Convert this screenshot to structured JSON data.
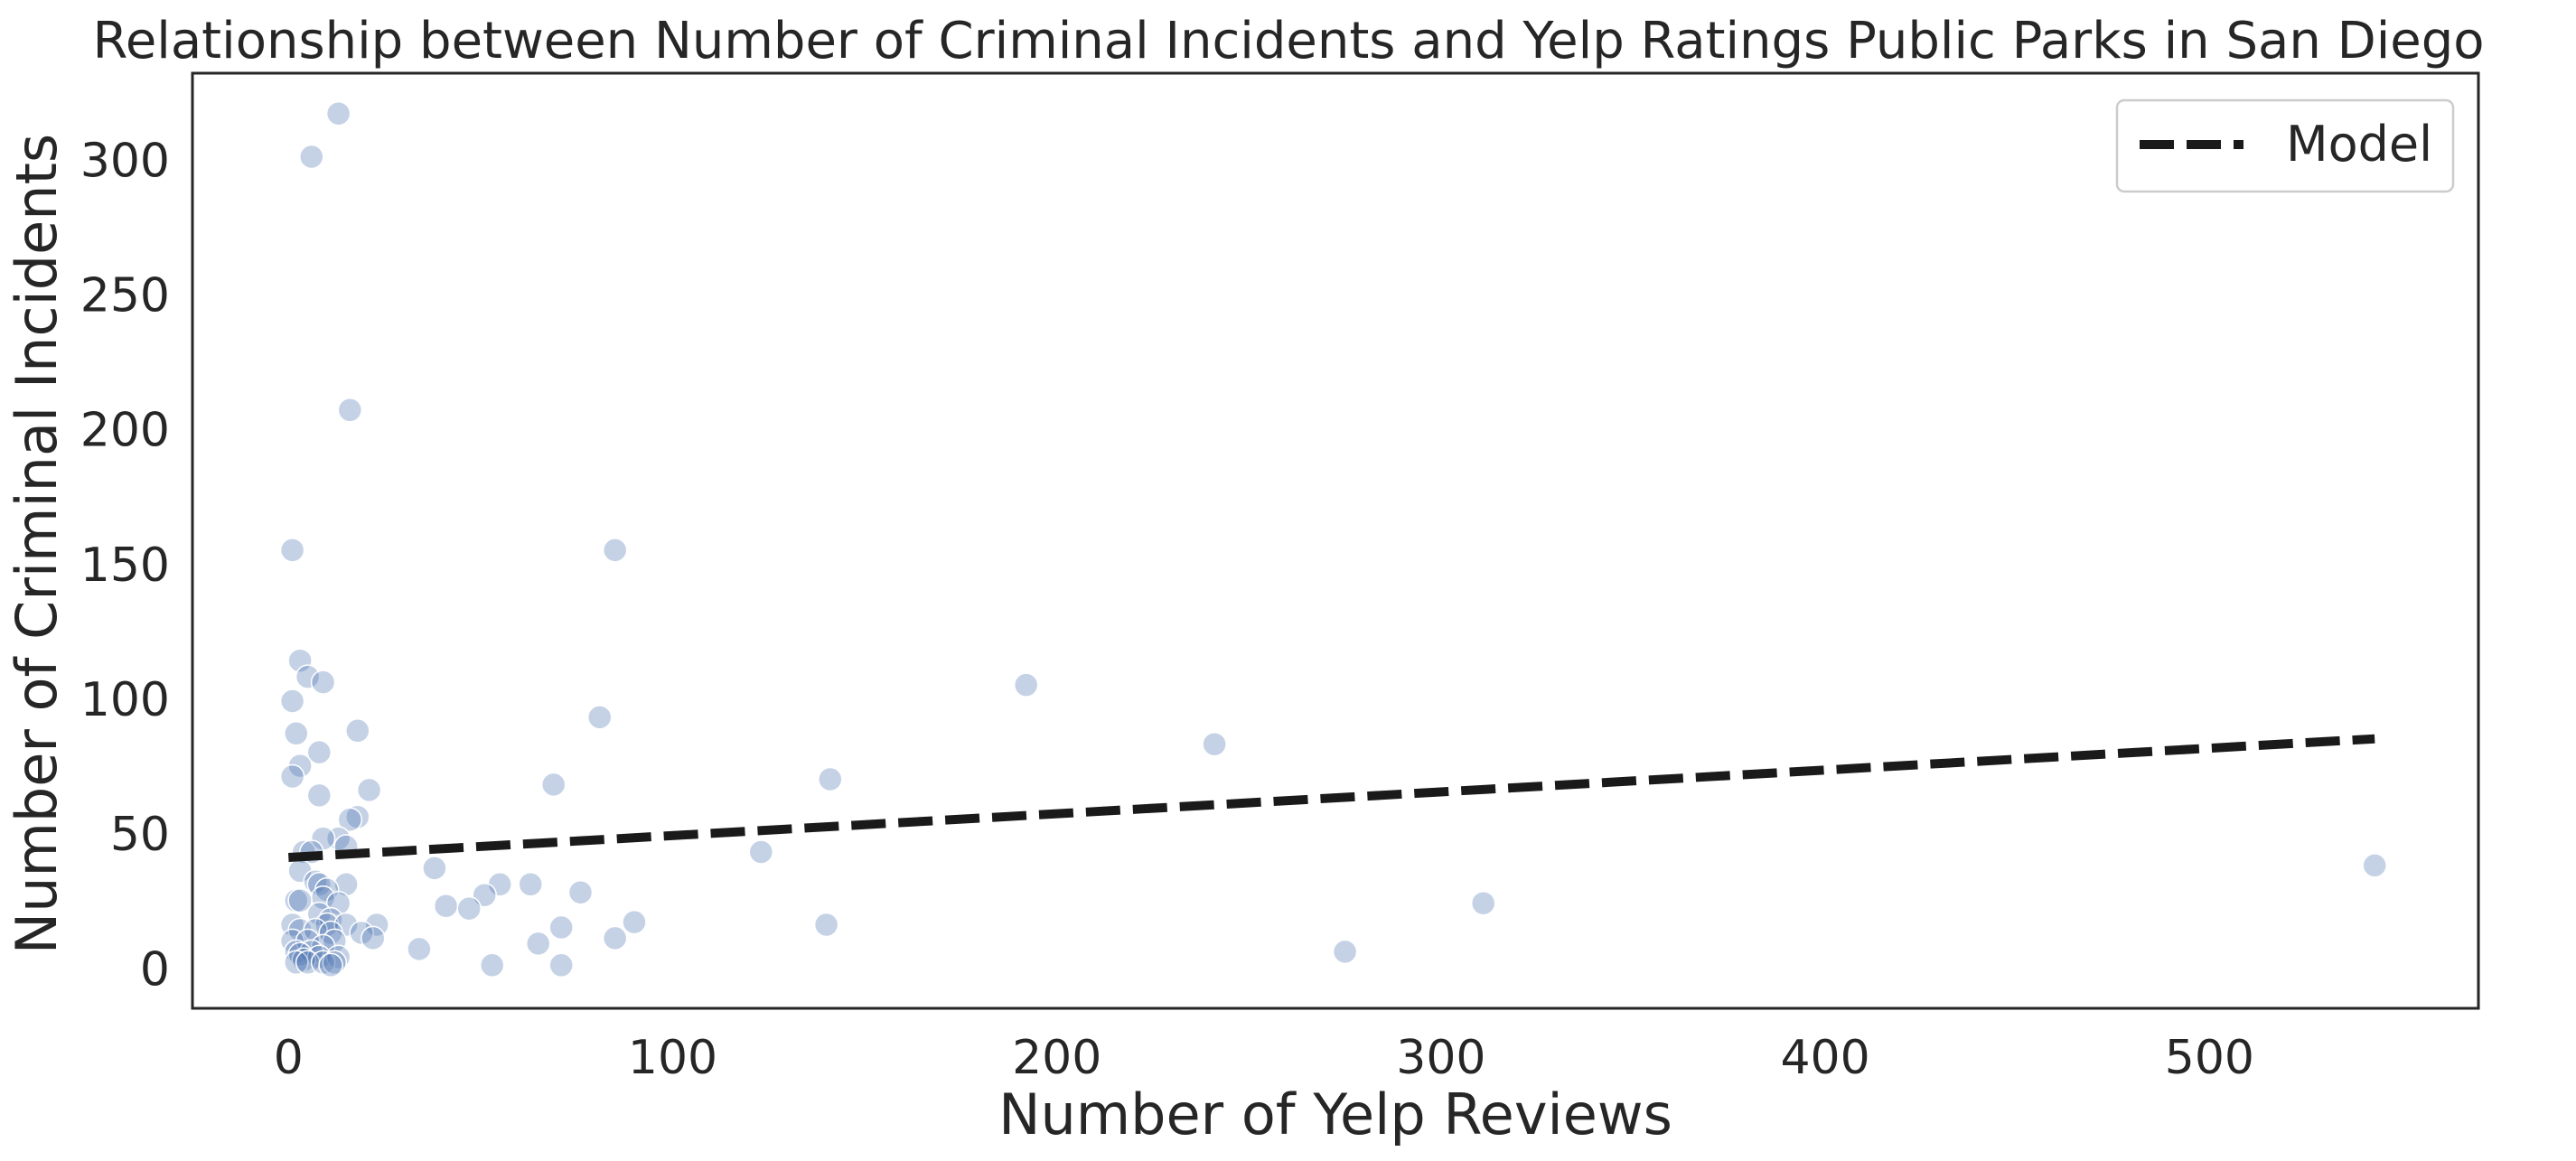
{
  "chart_data": {
    "type": "scatter",
    "title": "Relationship between Number of Criminal Incidents and Yelp Ratings Public Parks in San Diego",
    "xlabel": "Number of Yelp Reviews",
    "ylabel": "Number of Criminal Incidents",
    "xlim": [
      -25,
      570
    ],
    "ylim": [
      -15,
      332
    ],
    "xticks": [
      0,
      100,
      200,
      300,
      400,
      500
    ],
    "yticks": [
      0,
      50,
      100,
      150,
      200,
      250,
      300
    ],
    "grid": false,
    "legend_position": "top-right",
    "point_color": "#4c72b0",
    "line_color": "#1a1a1a",
    "series": [
      {
        "kind": "scatter",
        "points": [
          [
            13,
            317
          ],
          [
            6,
            301
          ],
          [
            16,
            207
          ],
          [
            1,
            155
          ],
          [
            85,
            155
          ],
          [
            3,
            114
          ],
          [
            5,
            108
          ],
          [
            9,
            106
          ],
          [
            192,
            105
          ],
          [
            1,
            99
          ],
          [
            81,
            93
          ],
          [
            2,
            87
          ],
          [
            18,
            88
          ],
          [
            241,
            83
          ],
          [
            8,
            80
          ],
          [
            3,
            75
          ],
          [
            1,
            71
          ],
          [
            141,
            70
          ],
          [
            69,
            68
          ],
          [
            21,
            66
          ],
          [
            8,
            64
          ],
          [
            18,
            56
          ],
          [
            16,
            55
          ],
          [
            13,
            48
          ],
          [
            9,
            48
          ],
          [
            15,
            45
          ],
          [
            4,
            43
          ],
          [
            6,
            43
          ],
          [
            123,
            43
          ],
          [
            38,
            37
          ],
          [
            3,
            36
          ],
          [
            543,
            38
          ],
          [
            7,
            32
          ],
          [
            8,
            31
          ],
          [
            15,
            31
          ],
          [
            55,
            31
          ],
          [
            63,
            31
          ],
          [
            10,
            29
          ],
          [
            76,
            28
          ],
          [
            51,
            27
          ],
          [
            9,
            26
          ],
          [
            2,
            25
          ],
          [
            3,
            25
          ],
          [
            13,
            24
          ],
          [
            41,
            23
          ],
          [
            47,
            22
          ],
          [
            311,
            24
          ],
          [
            8,
            20
          ],
          [
            11,
            18
          ],
          [
            90,
            17
          ],
          [
            1,
            16
          ],
          [
            10,
            16
          ],
          [
            15,
            16
          ],
          [
            23,
            16
          ],
          [
            140,
            16
          ],
          [
            71,
            15
          ],
          [
            3,
            14
          ],
          [
            7,
            14
          ],
          [
            11,
            13
          ],
          [
            19,
            13
          ],
          [
            22,
            11
          ],
          [
            85,
            11
          ],
          [
            1,
            10
          ],
          [
            5,
            10
          ],
          [
            12,
            10
          ],
          [
            65,
            9
          ],
          [
            9,
            8
          ],
          [
            34,
            7
          ],
          [
            275,
            6
          ],
          [
            2,
            6
          ],
          [
            6,
            6
          ],
          [
            3,
            5
          ],
          [
            8,
            4
          ],
          [
            13,
            4
          ],
          [
            4,
            3
          ],
          [
            2,
            2
          ],
          [
            5,
            2
          ],
          [
            9,
            2
          ],
          [
            12,
            2
          ],
          [
            53,
            1
          ],
          [
            71,
            1
          ],
          [
            11,
            1
          ]
        ]
      },
      {
        "kind": "line",
        "name": "Model",
        "style": "dashed",
        "points": [
          [
            0,
            41
          ],
          [
            543,
            85
          ]
        ]
      }
    ]
  }
}
